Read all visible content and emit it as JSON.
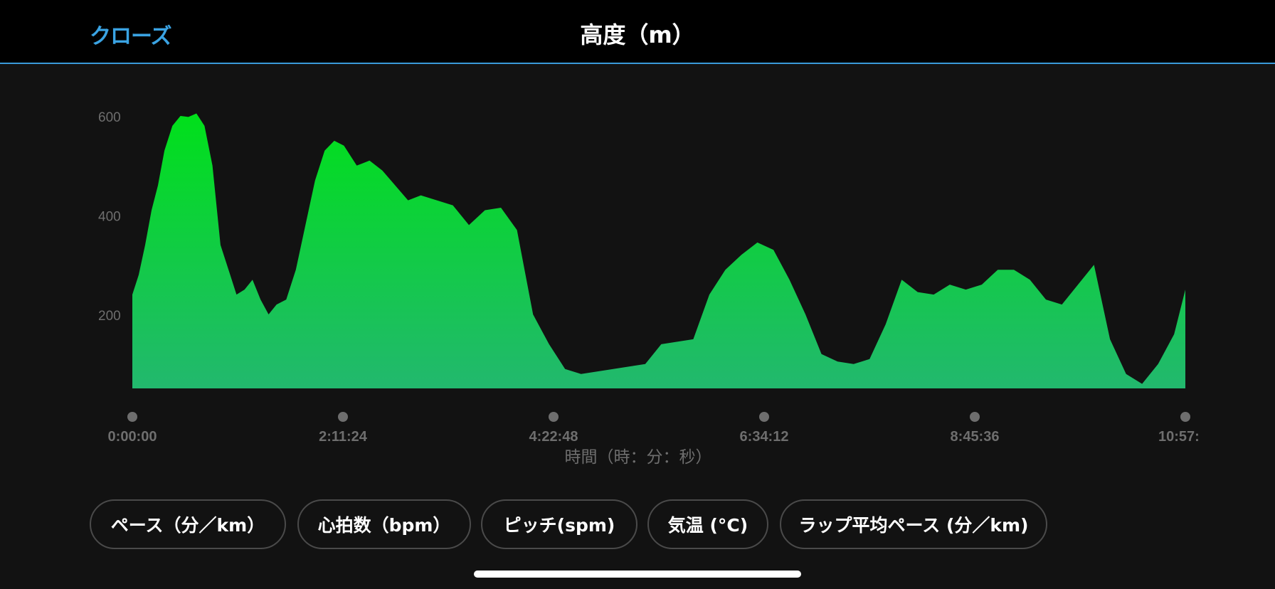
{
  "header": {
    "close_label": "クローズ",
    "title": "高度（m）"
  },
  "chart_data": {
    "type": "area",
    "title": "高度（m）",
    "xlabel": "時間（時：分：秒）",
    "ylabel": "",
    "x_ticks": [
      "0:00:00",
      "2:11:24",
      "4:22:48",
      "6:34:12",
      "8:45:36",
      "10:57:"
    ],
    "y_ticks": [
      200,
      400,
      600
    ],
    "xlim_minutes": [
      0,
      657
    ],
    "ylim": [
      50,
      620
    ],
    "grid": false,
    "legend": "none",
    "fill_top_color": "#00e01a",
    "fill_bottom_color": "#22b86e",
    "series": [
      {
        "x_minutes": [
          0,
          4,
          8,
          12,
          16,
          20,
          25,
          30,
          35,
          40,
          45,
          50,
          55,
          60,
          65,
          70,
          75,
          80,
          85,
          90,
          96,
          102,
          108,
          114,
          120,
          126,
          132,
          140,
          148,
          156,
          164,
          172,
          180,
          190,
          200,
          210,
          220,
          230,
          240,
          250,
          260,
          270,
          280,
          290,
          300,
          310,
          320,
          330,
          340,
          350,
          360,
          370,
          380,
          390,
          400,
          410,
          420,
          430,
          440,
          450,
          460,
          470,
          480,
          490,
          500,
          510,
          520,
          530,
          540,
          550,
          560,
          570,
          580,
          590,
          600,
          610,
          620,
          630,
          640,
          650,
          657
        ],
        "y": [
          240,
          280,
          340,
          410,
          460,
          530,
          580,
          600,
          598,
          605,
          580,
          500,
          340,
          290,
          240,
          250,
          270,
          230,
          200,
          220,
          230,
          290,
          380,
          470,
          530,
          550,
          540,
          500,
          510,
          490,
          460,
          430,
          440,
          430,
          420,
          380,
          410,
          415,
          370,
          200,
          140,
          90,
          80,
          85,
          90,
          95,
          100,
          140,
          145,
          150,
          240,
          290,
          320,
          345,
          330,
          270,
          200,
          120,
          105,
          100,
          110,
          180,
          270,
          245,
          240,
          260,
          250,
          260,
          290,
          290,
          270,
          230,
          220,
          260,
          300,
          150,
          80,
          60,
          100,
          160,
          250
        ]
      }
    ]
  },
  "tabs": [
    {
      "label": "ペース（分／km）"
    },
    {
      "label": "心拍数（bpm）"
    },
    {
      "label": "ピッチ(spm)"
    },
    {
      "label": "気温 (°C)"
    },
    {
      "label": "ラップ平均ペース (分／km)"
    }
  ]
}
